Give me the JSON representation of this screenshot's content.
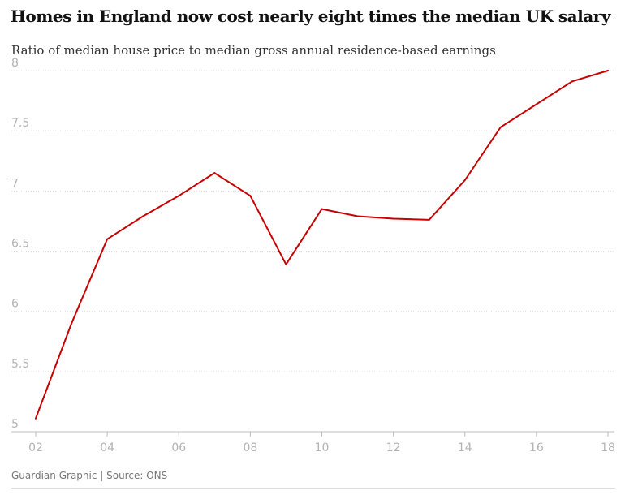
{
  "chart_data": {
    "type": "line",
    "title": "Homes in England now cost nearly eight times the median UK salary",
    "subtitle": "Ratio of median house price to median gross annual residence-based earnings",
    "x": [
      2,
      3,
      4,
      5,
      6,
      7,
      8,
      9,
      10,
      11,
      12,
      13,
      14,
      15,
      16,
      17,
      18
    ],
    "values": [
      5.11,
      5.9,
      6.6,
      6.79,
      6.96,
      7.15,
      6.96,
      6.39,
      6.85,
      6.79,
      6.77,
      6.76,
      7.09,
      7.53,
      7.72,
      7.91,
      8.0
    ],
    "x_ticks": [
      2,
      4,
      6,
      8,
      10,
      12,
      14,
      16,
      18
    ],
    "x_tick_labels": [
      "02",
      "04",
      "06",
      "08",
      "10",
      "12",
      "14",
      "16",
      "18"
    ],
    "y_ticks": [
      5,
      5.5,
      6,
      6.5,
      7,
      7.5,
      8
    ],
    "y_tick_labels": [
      "5",
      "5.5",
      "6",
      "6.5",
      "7",
      "7.5",
      "8"
    ],
    "xlim": [
      2,
      18
    ],
    "ylim": [
      5,
      8
    ],
    "grid": true,
    "line_color": "#c70000",
    "grid_color": "#dcdcdc"
  },
  "footer": {
    "source": "Guardian Graphic | Source: ONS"
  }
}
